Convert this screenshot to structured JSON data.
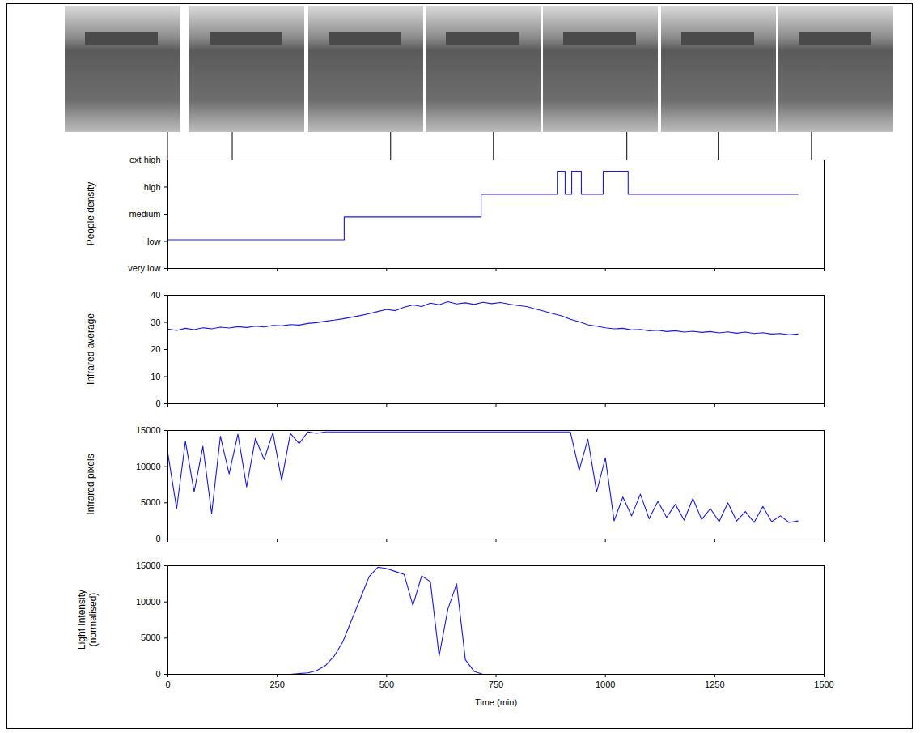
{
  "chart_data": [
    {
      "type": "line",
      "ylabel": "People density",
      "line_style": "step",
      "color": "#1a1ad6",
      "tick_labels": "y",
      "snapshot_times": [
        0,
        148,
        510,
        745,
        1050,
        1259,
        1472
      ],
      "x": [
        0,
        403,
        716,
        890,
        908,
        923,
        945,
        995,
        1052,
        1440
      ],
      "values": [
        1.06,
        1.9,
        2.73,
        3.58,
        2.73,
        3.58,
        2.73,
        3.58,
        2.73,
        2.73
      ],
      "xlim": [
        0,
        1500
      ],
      "xticks": [
        0,
        250,
        500,
        750,
        1000,
        1250,
        1500
      ],
      "ylim": [
        0,
        4
      ],
      "yticks": [
        {
          "value": 0,
          "label": "very low"
        },
        {
          "value": 1,
          "label": "low"
        },
        {
          "value": 2,
          "label": "medium"
        },
        {
          "value": 3,
          "label": "high"
        },
        {
          "value": 4,
          "label": "ext high"
        }
      ]
    },
    {
      "type": "line",
      "ylabel": "Infrared average",
      "color": "#1a1ad6",
      "tick_labels": "y",
      "x": [
        0,
        20,
        40,
        60,
        80,
        100,
        120,
        140,
        160,
        180,
        200,
        220,
        240,
        260,
        280,
        300,
        320,
        340,
        360,
        380,
        400,
        420,
        440,
        460,
        480,
        500,
        520,
        540,
        560,
        580,
        600,
        620,
        640,
        660,
        680,
        700,
        720,
        740,
        760,
        780,
        800,
        820,
        840,
        860,
        880,
        900,
        920,
        940,
        960,
        980,
        1000,
        1020,
        1040,
        1060,
        1080,
        1100,
        1120,
        1140,
        1160,
        1180,
        1200,
        1220,
        1240,
        1260,
        1280,
        1300,
        1320,
        1340,
        1360,
        1380,
        1400,
        1420,
        1440
      ],
      "values": [
        27.5,
        27.0,
        27.8,
        27.3,
        28.0,
        27.6,
        28.2,
        27.9,
        28.4,
        28.1,
        28.6,
        28.3,
        28.9,
        28.7,
        29.2,
        29.0,
        29.6,
        29.9,
        30.4,
        30.8,
        31.3,
        31.9,
        32.5,
        33.2,
        34.0,
        34.8,
        34.3,
        35.6,
        36.4,
        35.8,
        37.1,
        36.5,
        37.6,
        36.8,
        37.2,
        36.6,
        37.4,
        36.9,
        37.3,
        36.7,
        36.2,
        35.8,
        34.9,
        34.1,
        33.2,
        32.4,
        31.1,
        30.2,
        29.1,
        28.6,
        28.0,
        27.6,
        27.8,
        27.2,
        27.4,
        26.9,
        27.1,
        26.6,
        26.9,
        26.4,
        26.7,
        26.3,
        26.6,
        26.1,
        26.5,
        26.0,
        26.4,
        25.9,
        26.2,
        25.7,
        25.9,
        25.4,
        25.7
      ],
      "xlim": [
        0,
        1500
      ],
      "xticks": [
        0,
        250,
        500,
        750,
        1000,
        1250,
        1500
      ],
      "ylim": [
        0,
        40
      ],
      "yticks": [
        0,
        10,
        20,
        30,
        40
      ]
    },
    {
      "type": "line",
      "ylabel": "Infrared pixels",
      "color": "#1a1ad6",
      "tick_labels": "y",
      "x": [
        0,
        20,
        40,
        60,
        80,
        100,
        120,
        140,
        160,
        180,
        200,
        220,
        240,
        260,
        280,
        300,
        320,
        340,
        360,
        380,
        400,
        420,
        440,
        460,
        480,
        500,
        520,
        540,
        560,
        580,
        600,
        620,
        640,
        660,
        680,
        700,
        720,
        740,
        760,
        780,
        800,
        820,
        840,
        860,
        880,
        900,
        920,
        940,
        960,
        980,
        1000,
        1020,
        1040,
        1060,
        1080,
        1100,
        1120,
        1140,
        1160,
        1180,
        1200,
        1220,
        1240,
        1260,
        1280,
        1300,
        1320,
        1340,
        1360,
        1380,
        1400,
        1420,
        1440
      ],
      "values": [
        11800,
        4200,
        13500,
        6500,
        12800,
        3500,
        14200,
        9000,
        14500,
        7200,
        13900,
        11000,
        14700,
        8100,
        14600,
        13200,
        14800,
        14600,
        14800,
        14800,
        14800,
        14800,
        14800,
        14800,
        14800,
        14800,
        14800,
        14800,
        14800,
        14800,
        14800,
        14800,
        14800,
        14800,
        14800,
        14800,
        14800,
        14800,
        14800,
        14800,
        14800,
        14800,
        14800,
        14800,
        14800,
        14800,
        14800,
        9500,
        13800,
        6500,
        11200,
        2500,
        5800,
        3200,
        6200,
        2800,
        5200,
        3000,
        4800,
        2600,
        5600,
        2700,
        4200,
        2400,
        5000,
        2500,
        3800,
        2300,
        4500,
        2400,
        3200,
        2300,
        2500
      ],
      "xlim": [
        0,
        1500
      ],
      "xticks": [
        0,
        250,
        500,
        750,
        1000,
        1250,
        1500
      ],
      "ylim": [
        0,
        15000
      ],
      "yticks": [
        0,
        5000,
        10000,
        15000
      ]
    },
    {
      "type": "line",
      "ylabel": "Light Intensity\n(normalised)",
      "xlabel": "Time (min)",
      "color": "#1a1ad6",
      "x": [
        0,
        20,
        40,
        60,
        80,
        100,
        120,
        140,
        160,
        180,
        200,
        220,
        240,
        260,
        280,
        300,
        320,
        340,
        360,
        380,
        400,
        420,
        440,
        460,
        480,
        500,
        520,
        540,
        560,
        580,
        600,
        620,
        640,
        660,
        680,
        700,
        720,
        740,
        760,
        780,
        800,
        820,
        840,
        860,
        880,
        900,
        920,
        940,
        960,
        980,
        1000,
        1020,
        1040,
        1060,
        1080,
        1100,
        1120,
        1140,
        1160,
        1180,
        1200,
        1220,
        1240,
        1260,
        1280,
        1300,
        1320,
        1340,
        1360,
        1380,
        1400,
        1420,
        1440
      ],
      "values": [
        0,
        0,
        0,
        0,
        0,
        0,
        0,
        0,
        0,
        0,
        0,
        0,
        0,
        0,
        0,
        100,
        200,
        500,
        1200,
        2500,
        4500,
        7500,
        10500,
        13500,
        14800,
        14600,
        14200,
        13800,
        9500,
        13600,
        12800,
        2500,
        9000,
        12500,
        2000,
        400,
        0,
        0,
        0,
        0,
        0,
        0,
        0,
        0,
        0,
        0,
        0,
        0,
        0,
        0,
        0,
        0,
        0,
        0,
        0,
        0,
        0,
        0,
        0,
        0,
        0,
        0,
        0,
        0,
        0,
        0,
        0,
        0,
        0,
        0,
        0,
        0,
        0
      ],
      "xlim": [
        0,
        1500
      ],
      "xticks": [
        0,
        250,
        500,
        750,
        1000,
        1250,
        1500
      ],
      "ylim": [
        0,
        15000
      ],
      "yticks": [
        0,
        5000,
        10000,
        15000
      ]
    }
  ]
}
